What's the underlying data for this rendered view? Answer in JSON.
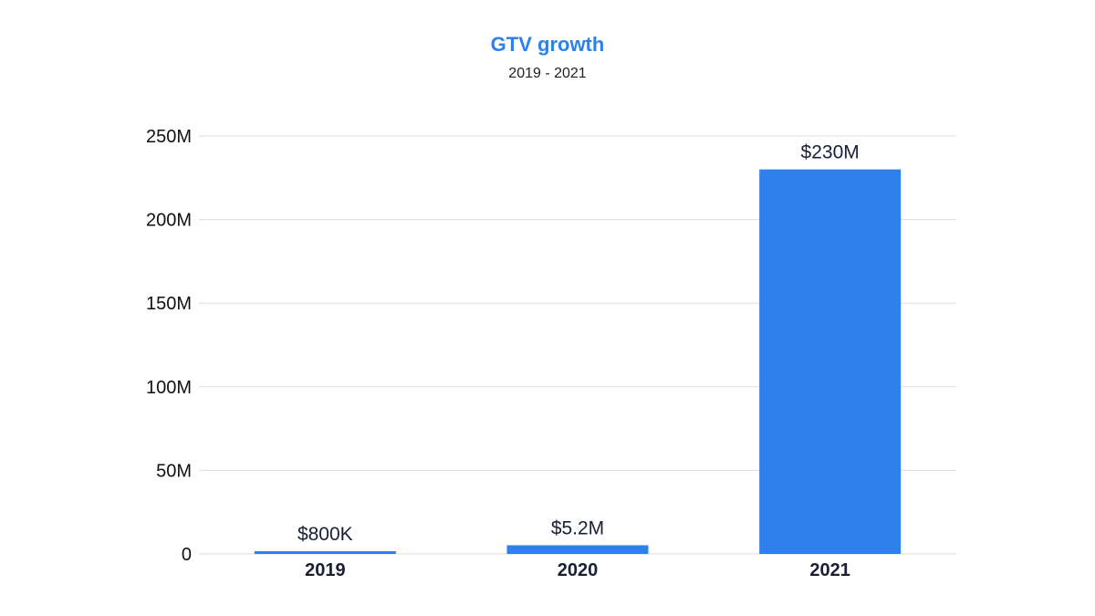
{
  "colors": {
    "accent": "#2f80ed",
    "bar": "#2f80ed",
    "grid": "#dddddd",
    "text": "#1a1f36"
  },
  "chart_data": {
    "type": "bar",
    "title": "GTV growth",
    "subtitle": "2019 - 2021",
    "xlabel": "",
    "ylabel": "",
    "categories": [
      "2019",
      "2020",
      "2021"
    ],
    "values": [
      800000,
      5200000,
      230000000
    ],
    "data_labels": [
      "$800K",
      "$5.2M",
      "$230M"
    ],
    "ylim": [
      0,
      250000000
    ],
    "yticks": [
      0,
      50000000,
      100000000,
      150000000,
      200000000,
      250000000
    ],
    "ytick_labels": [
      "0",
      "50M",
      "100M",
      "150M",
      "200M",
      "250M"
    ],
    "grid": true,
    "legend": "none"
  }
}
